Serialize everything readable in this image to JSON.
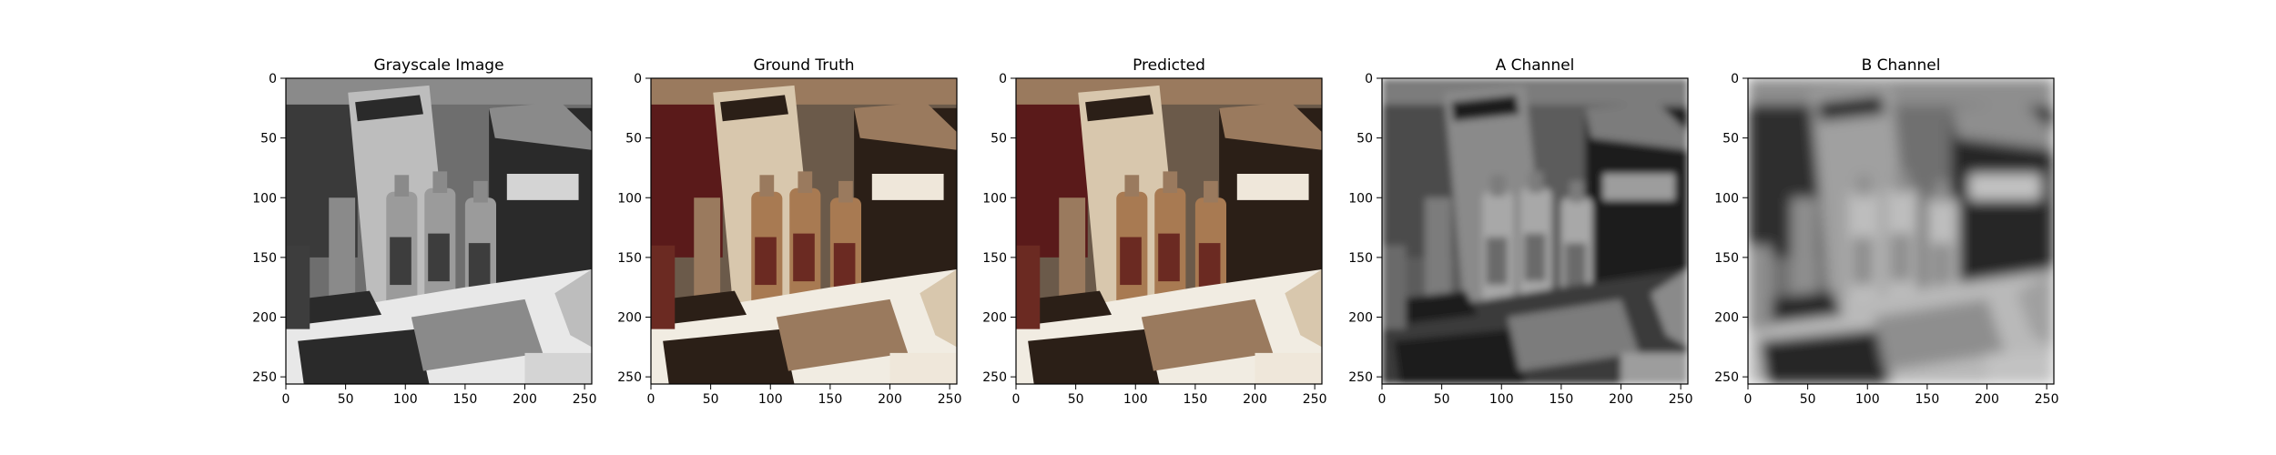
{
  "chart_data": [
    {
      "type": "image",
      "title": "Grayscale Image",
      "xlim": [
        0,
        256
      ],
      "ylim": [
        256,
        0
      ],
      "xticks": [
        0,
        50,
        100,
        150,
        200,
        250
      ],
      "yticks": [
        0,
        50,
        100,
        150,
        200,
        250
      ],
      "palette": "gray"
    },
    {
      "type": "image",
      "title": "Ground Truth",
      "xlim": [
        0,
        256
      ],
      "ylim": [
        256,
        0
      ],
      "xticks": [
        0,
        50,
        100,
        150,
        200,
        250
      ],
      "yticks": [
        0,
        50,
        100,
        150,
        200,
        250
      ],
      "palette": "color"
    },
    {
      "type": "image",
      "title": "Predicted",
      "xlim": [
        0,
        256
      ],
      "ylim": [
        256,
        0
      ],
      "xticks": [
        0,
        50,
        100,
        150,
        200,
        250
      ],
      "yticks": [
        0,
        50,
        100,
        150,
        200,
        250
      ],
      "palette": "color"
    },
    {
      "type": "image",
      "title": "A Channel",
      "xlim": [
        0,
        256
      ],
      "ylim": [
        256,
        0
      ],
      "xticks": [
        0,
        50,
        100,
        150,
        200,
        250
      ],
      "yticks": [
        0,
        50,
        100,
        150,
        200,
        250
      ],
      "palette": "blur-gray"
    },
    {
      "type": "image",
      "title": "B Channel",
      "xlim": [
        0,
        256
      ],
      "ylim": [
        256,
        0
      ],
      "xticks": [
        0,
        50,
        100,
        150,
        200,
        250
      ],
      "yticks": [
        0,
        50,
        100,
        150,
        200,
        250
      ],
      "palette": "blur-gray-light"
    }
  ]
}
